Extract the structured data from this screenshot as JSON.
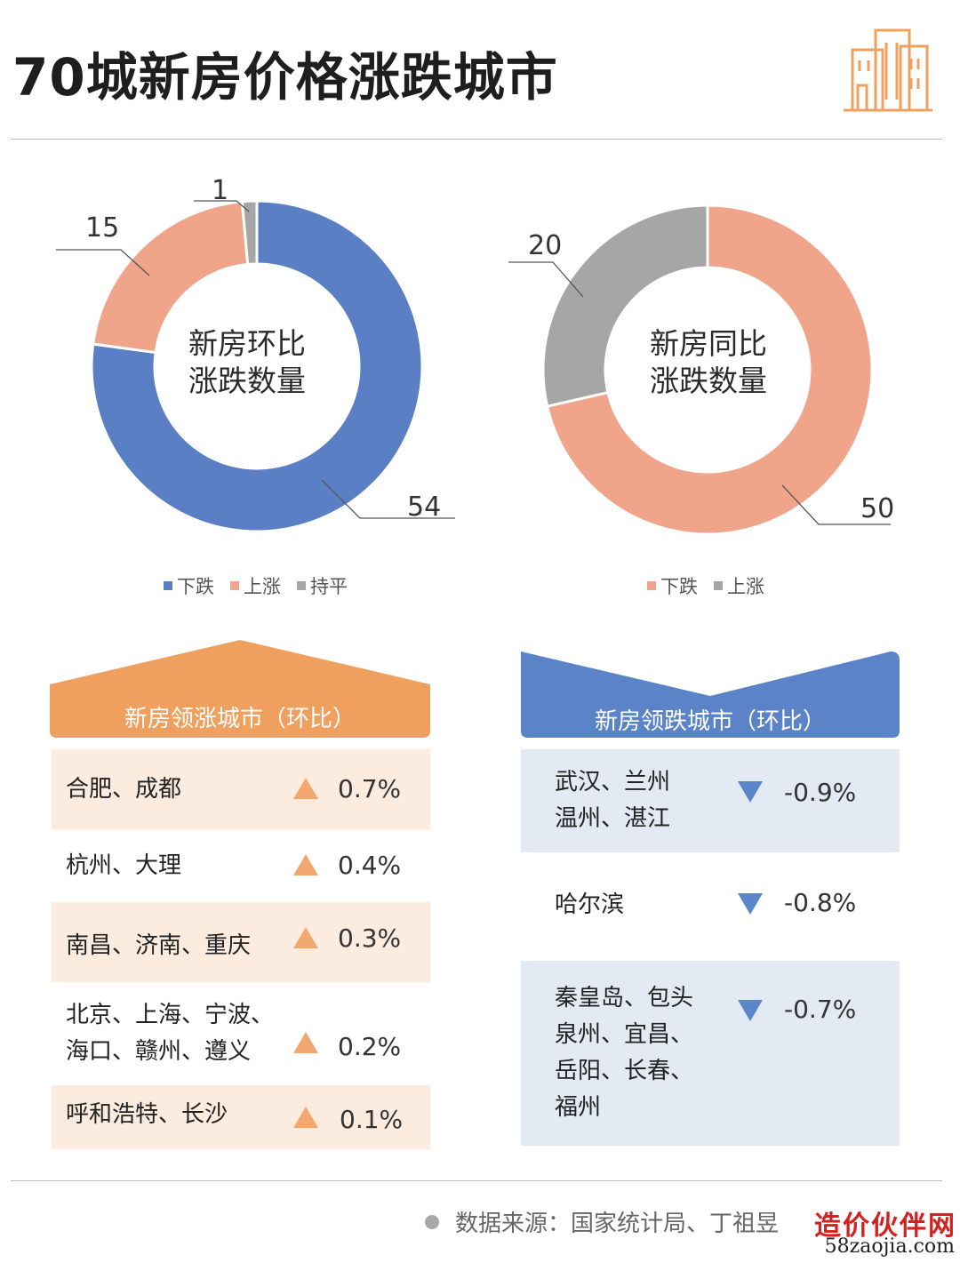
{
  "title": "70城新房价格涨跌城市",
  "colors": {
    "blue": "#5b7fc4",
    "orange": "#f0a48a",
    "gray": "#a6a6a6",
    "header_orange": "#f0a05e",
    "header_blue": "#5b83c8",
    "row_orange": "#fcebdf",
    "row_blue": "#e3eaf4",
    "tri_orange": "#f0a870",
    "tri_blue": "#5b86c9"
  },
  "chart_data": [
    {
      "type": "pie",
      "center_label": "新房环比\n涨跌数量",
      "categories": [
        "下跌",
        "上涨",
        "持平"
      ],
      "values": [
        54,
        15,
        1
      ],
      "data_labels": [
        "54",
        "15",
        "1"
      ],
      "legend": [
        "下跌",
        "上涨",
        "持平"
      ],
      "legend_position": "bottom"
    },
    {
      "type": "pie",
      "center_label": "新房同比\n涨跌数量",
      "categories": [
        "下跌",
        "上涨"
      ],
      "values": [
        50,
        20
      ],
      "data_labels": [
        "50",
        "20"
      ],
      "legend": [
        "下跌",
        "上涨"
      ],
      "legend_position": "bottom"
    }
  ],
  "rise_panel": {
    "header": "新房领涨城市（环比）",
    "rows": [
      {
        "cities": "合肥、成都",
        "pct": "0.7%"
      },
      {
        "cities": "杭州、大理",
        "pct": "0.4%"
      },
      {
        "cities": "南昌、济南、重庆",
        "pct": "0.3%"
      },
      {
        "cities": "北京、上海、宁波、\n海口、赣州、遵义",
        "pct": "0.2%"
      },
      {
        "cities": "呼和浩特、长沙",
        "pct": "0.1%"
      }
    ]
  },
  "fall_panel": {
    "header": "新房领跌城市（环比）",
    "rows": [
      {
        "cities": "武汉、兰州\n温州、湛江",
        "pct": "-0.9%"
      },
      {
        "cities": "哈尔滨",
        "pct": "-0.8%"
      },
      {
        "cities": "秦皇岛、包头\n泉州、宜昌、\n岳阳、长春、\n福州",
        "pct": "-0.7%"
      }
    ]
  },
  "footer": {
    "source": "数据来源：国家统计局、丁祖昱"
  },
  "brand": {
    "name": "造价伙伴网",
    "url": "58zaojia.com"
  }
}
